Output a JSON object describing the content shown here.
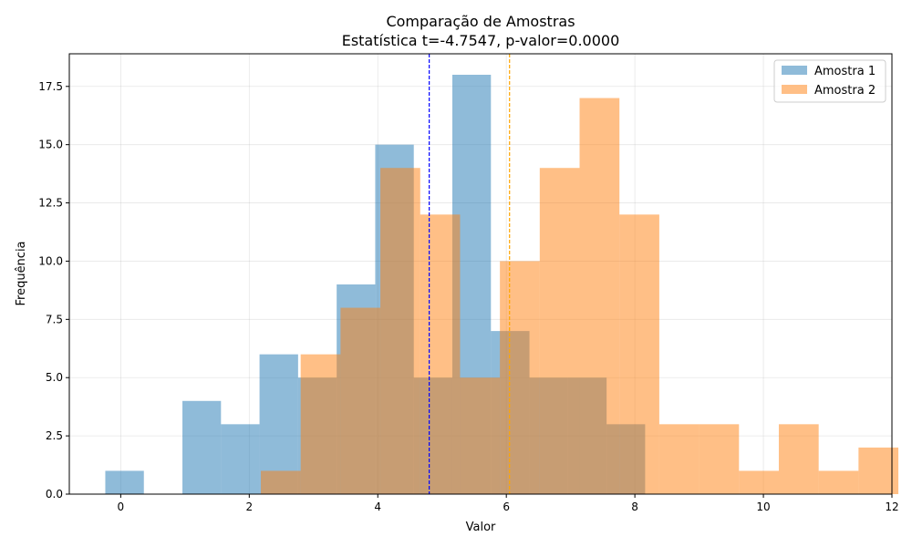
{
  "chart_data": {
    "type": "bar",
    "title": "Comparação de Amostras",
    "subtitle": "Estatística t=-4.7547, p-valor=0.0000",
    "xlabel": "Valor",
    "ylabel": "Frequência",
    "xlim": [
      -0.8,
      12.0
    ],
    "ylim": [
      0,
      18.9
    ],
    "xticks": [
      0,
      2,
      4,
      6,
      8,
      10,
      12
    ],
    "xtick_labels": [
      "0",
      "2",
      "4",
      "6",
      "8",
      "10",
      "12"
    ],
    "yticks": [
      0,
      2.5,
      5,
      7.5,
      10,
      12.5,
      15,
      17.5
    ],
    "ytick_labels": [
      "0.0",
      "2.5",
      "5.0",
      "7.5",
      "10.0",
      "12.5",
      "15.0",
      "17.5"
    ],
    "grid": true,
    "legend_position": "top-right",
    "series": [
      {
        "name": "Amostra 1",
        "color": "#1f77b4",
        "alpha": 0.5,
        "bin_start": -0.24,
        "bin_width": 0.6,
        "counts": [
          1,
          0,
          4,
          3,
          6,
          5,
          9,
          15,
          5,
          18,
          7,
          5,
          5,
          3
        ],
        "mean": 4.8
      },
      {
        "name": "Amostra 2",
        "color": "#ff7f0e",
        "alpha": 0.5,
        "bin_start": 2.18,
        "bin_width": 0.62,
        "counts": [
          1,
          6,
          8,
          14,
          12,
          5,
          10,
          14,
          17,
          12,
          3,
          3,
          1,
          3,
          1,
          2
        ],
        "mean": 6.05
      }
    ],
    "mean_lines": [
      {
        "x": 4.8,
        "color": "#0000ff",
        "style": "dashed"
      },
      {
        "x": 6.05,
        "color": "#ffa500",
        "style": "dashed"
      }
    ]
  }
}
